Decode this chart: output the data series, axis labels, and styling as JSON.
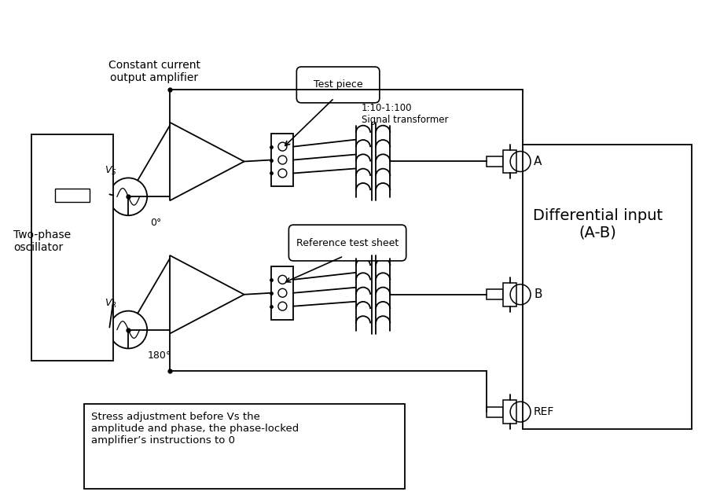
{
  "bg_color": "#ffffff",
  "lc": "#000000",
  "figsize": [
    9.03,
    6.35
  ],
  "dpi": 100,
  "label_const_current": "Constant current\noutput amplifier",
  "label_two_phase": "Two-phase\noscillator",
  "label_diff_input": "Differential input\n(A-B)",
  "label_test_piece": "Test piece",
  "label_ref_test": "Reference test sheet",
  "label_signal_transformer": "1:10-1:100\nSignal transformer",
  "label_Vs": "$V_S$",
  "label_0deg": "0°",
  "label_VR": "$V_R$",
  "label_180deg": "180°",
  "label_A": "A",
  "label_B": "B",
  "label_REF": "REF",
  "label_note": "Stress adjustment before Vs the\namplitude and phase, the phase-locked\namplifier’s instructions to 0"
}
